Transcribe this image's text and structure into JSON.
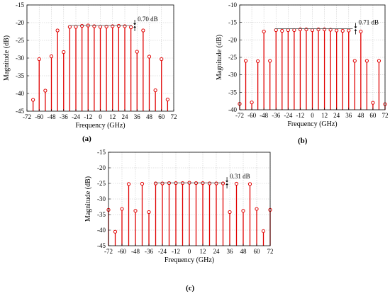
{
  "style": {
    "stem_color": "#e00000",
    "marker_edge": "#e00000",
    "grid_color": "#c8c8c8",
    "ref_line_color": "#555555"
  },
  "captions": [
    "(a)",
    "(b)",
    "(c)"
  ],
  "chart_data": [
    {
      "type": "stem",
      "caption": "(a)",
      "xlabel": "Frequency (GHz)",
      "ylabel": "Magnitude (dB)",
      "xlim": [
        -72,
        72
      ],
      "ylim": [
        -45,
        -15
      ],
      "xticks": [
        -72,
        -60,
        -48,
        -36,
        -24,
        -12,
        0,
        12,
        24,
        36,
        48,
        60,
        72
      ],
      "yticks": [
        -45,
        -40,
        -35,
        -30,
        -25,
        -20,
        -15
      ],
      "grid": true,
      "annotation": "0.70 dB",
      "ref_line": [
        -31,
        31,
        -20.8
      ],
      "x": [
        -66,
        -60,
        -54,
        -48,
        -42,
        -36,
        -30,
        -24,
        -18,
        -12,
        -6,
        0,
        6,
        12,
        18,
        24,
        30,
        36,
        42,
        48,
        54,
        60,
        66
      ],
      "y": [
        -41.8,
        -30.3,
        -39.2,
        -29.5,
        -22.2,
        -28.3,
        -21.2,
        -21.2,
        -20.9,
        -20.8,
        -21.0,
        -21.2,
        -21.1,
        -21.0,
        -20.9,
        -21.0,
        -21.3,
        -28.2,
        -22.2,
        -29.6,
        -39.1,
        -30.3,
        -41.7
      ]
    },
    {
      "type": "stem",
      "caption": "(b)",
      "xlabel": "Frequency (GHz)",
      "ylabel": "Magnitude (dB)",
      "xlim": [
        -72,
        72
      ],
      "ylim": [
        -40,
        -10
      ],
      "xticks": [
        -72,
        -60,
        -48,
        -36,
        -24,
        -12,
        0,
        12,
        24,
        36,
        48,
        60,
        72
      ],
      "yticks": [
        -40,
        -35,
        -30,
        -25,
        -20,
        -15,
        -10
      ],
      "grid": true,
      "annotation": "0.71 dB",
      "ref_line": [
        -37,
        40,
        -16.8
      ],
      "x": [
        -72,
        -66,
        -60,
        -54,
        -48,
        -42,
        -36,
        -30,
        -24,
        -18,
        -12,
        -6,
        0,
        6,
        12,
        18,
        24,
        30,
        36,
        42,
        48,
        54,
        60,
        66,
        72
      ],
      "y": [
        -38.3,
        -26.0,
        -37.9,
        -26.1,
        -17.6,
        -26.0,
        -17.2,
        -17.4,
        -17.2,
        -17.2,
        -17.0,
        -17.0,
        -17.2,
        -17.0,
        -17.0,
        -17.1,
        -17.3,
        -17.4,
        -17.3,
        -26.0,
        -17.6,
        -26.0,
        -38.0,
        -26.0,
        -38.4
      ]
    },
    {
      "type": "stem",
      "caption": "(c)",
      "xlabel": "Frequency (GHz)",
      "ylabel": "Magnitude (dB)",
      "xlim": [
        -72,
        72
      ],
      "ylim": [
        -45,
        -15
      ],
      "xticks": [
        -72,
        -60,
        -48,
        -36,
        -24,
        -12,
        0,
        12,
        24,
        36,
        48,
        60,
        72
      ],
      "yticks": [
        -45,
        -40,
        -35,
        -30,
        -25,
        -20,
        -15
      ],
      "grid": true,
      "annotation": "0.31 dB",
      "ref_line": [
        -31,
        31,
        -24.8
      ],
      "x": [
        -72,
        -66,
        -60,
        -54,
        -48,
        -42,
        -36,
        -30,
        -24,
        -18,
        -12,
        -6,
        0,
        6,
        12,
        18,
        24,
        30,
        36,
        42,
        48,
        54,
        60,
        66,
        72
      ],
      "y": [
        -33.5,
        -40.5,
        -33.2,
        -25.2,
        -33.8,
        -25.1,
        -34.2,
        -25.0,
        -25.0,
        -24.9,
        -24.9,
        -24.9,
        -24.8,
        -24.9,
        -24.9,
        -25.0,
        -25.0,
        -25.0,
        -34.2,
        -25.1,
        -33.8,
        -25.2,
        -33.2,
        -40.3,
        -33.5
      ]
    }
  ]
}
